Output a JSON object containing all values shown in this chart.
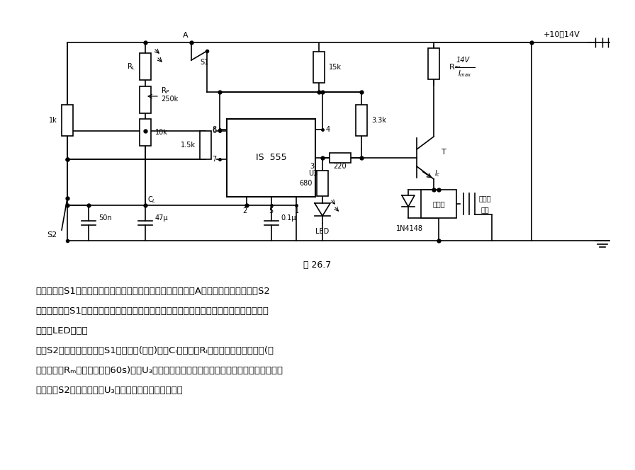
{
  "title": "图 26.7",
  "bg_color": "#ffffff",
  "fig_width": 8.96,
  "fig_height": 6.64,
  "dpi": 100,
  "desc1": "　　电路中S1是门控光电开关或行李间光控开关。在其闭合时A点为正工作电压。如果S2",
  "desc2": "闭合，则不管S1闭合与否，输出端电压喤均为高电平，晋体管不导通，继电器不吸合，发光",
  "desc3": "二极管LED不亮。",
  "desc4": "　　S2为常开触点，如果S1是闭合的(门开)，则Cₗ开始通过Rₗ缓慢充电。在一定时间(可",
  "desc5": "通过电位器Rₘ调节，不超过60s)内，U₃突然变低电平，于是继电器接通，报警器工作。如果",
  "desc6": "在报警时S2是闭合的，则U₃又为高电平，继电器释放。"
}
